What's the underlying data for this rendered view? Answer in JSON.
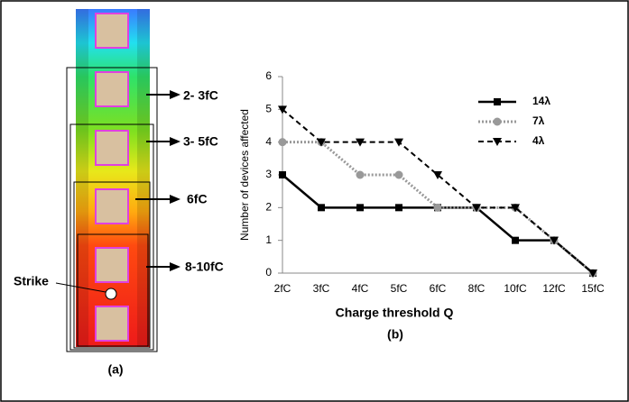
{
  "figure_a": {
    "labels": [
      "2- 3fC",
      "3- 5fC",
      "6fC",
      "8-10fC"
    ],
    "strike": "Strike",
    "caption": "(a)"
  },
  "chart_data": {
    "type": "line",
    "categories": [
      "2fC",
      "3fC",
      "4fC",
      "5fC",
      "6fC",
      "8fC",
      "10fC",
      "12fC",
      "15fC"
    ],
    "series": [
      {
        "name": "14λ",
        "color": "#000000",
        "line_style": "solid",
        "marker": "square",
        "values": [
          3,
          2,
          2,
          2,
          2,
          2,
          1,
          1,
          0
        ]
      },
      {
        "name": "7λ",
        "color": "#999999",
        "line_style": "dotted",
        "marker": "circle",
        "values": [
          4,
          4,
          3,
          3,
          2,
          2,
          2,
          1,
          0
        ]
      },
      {
        "name": "4λ",
        "color": "#000000",
        "line_style": "dashed",
        "marker": "triangle-down",
        "values": [
          5,
          4,
          4,
          4,
          3,
          2,
          2,
          1,
          0
        ]
      }
    ],
    "ylim": [
      0,
      6
    ],
    "yticks": [
      0,
      1,
      2,
      3,
      4,
      5,
      6
    ],
    "ylabel": "Number of devices affected",
    "xlabel": "Charge threshold Q",
    "caption": "(b)",
    "legend": "upper-right",
    "grid": false
  }
}
